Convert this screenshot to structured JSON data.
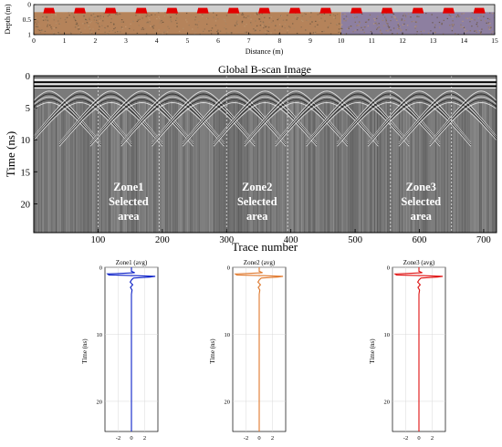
{
  "colors": {
    "soil": "#b5835a",
    "soil_right": "#8d7fa0",
    "air": "#cfcfcf",
    "target": "#e30000",
    "zone1": "#0a1fc8",
    "zone2": "#e0782c",
    "zone3": "#e01010",
    "grid": "#d9d9d9",
    "bscan_bg": "#7a7a7a",
    "zone_text": "#ffffff"
  },
  "chart_data": [
    {
      "type": "scatter",
      "ylabel": "Depth (m)",
      "xlabel": "Distance (m)",
      "xlim": [
        0,
        15
      ],
      "ylim": [
        1,
        0
      ],
      "xticks": [
        0,
        1,
        2,
        3,
        4,
        5,
        6,
        7,
        8,
        9,
        10,
        11,
        12,
        13,
        14,
        15
      ],
      "yticks": [
        0,
        0.5,
        1
      ],
      "tick_labels_y": [
        "0",
        "0.5",
        "1"
      ],
      "soil_surface_depth": 0.25,
      "targets": {
        "x": [
          0.5,
          1.5,
          2.5,
          3.5,
          4.5,
          5.5,
          6.5,
          7.5,
          8.5,
          9.5,
          10.5,
          11.5,
          12.5,
          13.5,
          14.5
        ],
        "depth": [
          0.2,
          0.2,
          0.2,
          0.2,
          0.2,
          0.2,
          0.2,
          0.2,
          0.2,
          0.2,
          0.2,
          0.2,
          0.2,
          0.2,
          0.2
        ]
      }
    },
    {
      "type": "heatmap",
      "title": "Global B-scan Image",
      "xlabel": "Trace number",
      "ylabel": "Time (ns)",
      "xlim": [
        0,
        720
      ],
      "ylim": [
        24.5,
        0
      ],
      "xticks": [
        100,
        200,
        300,
        400,
        500,
        600,
        700
      ],
      "yticks": [
        0,
        5,
        10,
        15,
        20
      ],
      "zones": [
        {
          "label_1": "Zone1",
          "label_2": "Selected",
          "label_3": "area",
          "x_start": 100,
          "x_end": 195
        },
        {
          "label_1": "Zone2",
          "label_2": "Selected",
          "label_3": "area",
          "x_start": 300,
          "x_end": 395
        },
        {
          "label_1": "Zone3",
          "label_2": "Selected",
          "label_3": "area",
          "x_start": 555,
          "x_end": 650
        }
      ],
      "hyperbola_apex_traces": [
        24,
        72,
        120,
        168,
        216,
        264,
        312,
        360,
        408,
        456,
        504,
        552,
        600,
        648,
        696
      ],
      "hyperbola_apex_time": 2.4
    },
    {
      "type": "line",
      "title": "Zone1 (avg)",
      "ylabel": "Time (ns)",
      "xlim": [
        -4,
        4
      ],
      "ylim": [
        24.5,
        0
      ],
      "xticks": [
        -2,
        0,
        2
      ],
      "yticks": [
        0,
        10,
        20
      ],
      "tick_labels_y": [
        "0",
        "10",
        "20"
      ],
      "series": [
        {
          "color_key": "zone1",
          "x": [
            0,
            0,
            0.5,
            -1.2,
            -3.6,
            -3.4,
            0.8,
            3.6,
            2.8,
            0.3,
            0,
            -0.2,
            0.2,
            -0.15,
            0.1,
            0,
            0
          ],
          "y": [
            0,
            0.6,
            0.8,
            0.9,
            1.0,
            1.15,
            1.25,
            1.35,
            1.45,
            1.6,
            1.9,
            2.2,
            2.6,
            3.0,
            3.4,
            4.0,
            24.5
          ]
        }
      ]
    },
    {
      "type": "line",
      "title": "Zone2 (avg)",
      "ylabel": "Time (ns)",
      "xlim": [
        -4,
        4
      ],
      "ylim": [
        24.5,
        0
      ],
      "xticks": [
        -2,
        0,
        2
      ],
      "yticks": [
        0,
        10,
        20
      ],
      "tick_labels_y": [
        "0",
        "10",
        "20"
      ],
      "series": [
        {
          "color_key": "zone2",
          "x": [
            0,
            0,
            0.5,
            -1.2,
            -3.6,
            -3.4,
            0.8,
            3.6,
            2.8,
            0.3,
            0,
            -0.2,
            0.2,
            -0.15,
            0.1,
            0,
            0
          ],
          "y": [
            0,
            0.6,
            0.8,
            0.9,
            1.0,
            1.15,
            1.25,
            1.35,
            1.45,
            1.6,
            1.9,
            2.2,
            2.6,
            3.0,
            3.4,
            4.0,
            24.5
          ]
        }
      ]
    },
    {
      "type": "line",
      "title": "Zone3 (avg)",
      "ylabel": "Time (ns)",
      "xlim": [
        -4,
        4
      ],
      "ylim": [
        24.5,
        0
      ],
      "xticks": [
        -2,
        0,
        2
      ],
      "yticks": [
        0,
        10,
        20
      ],
      "tick_labels_y": [
        "0",
        "10",
        "20"
      ],
      "series": [
        {
          "color_key": "zone3",
          "x": [
            0,
            0,
            0.5,
            -1.2,
            -3.6,
            -3.4,
            0.8,
            3.6,
            2.8,
            0.3,
            0,
            -0.2,
            0.2,
            -0.15,
            0.1,
            0,
            0
          ],
          "y": [
            0,
            0.6,
            0.8,
            0.9,
            1.0,
            1.15,
            1.25,
            1.35,
            1.45,
            1.6,
            1.9,
            2.2,
            2.6,
            3.0,
            3.4,
            4.0,
            24.5
          ]
        }
      ]
    }
  ]
}
